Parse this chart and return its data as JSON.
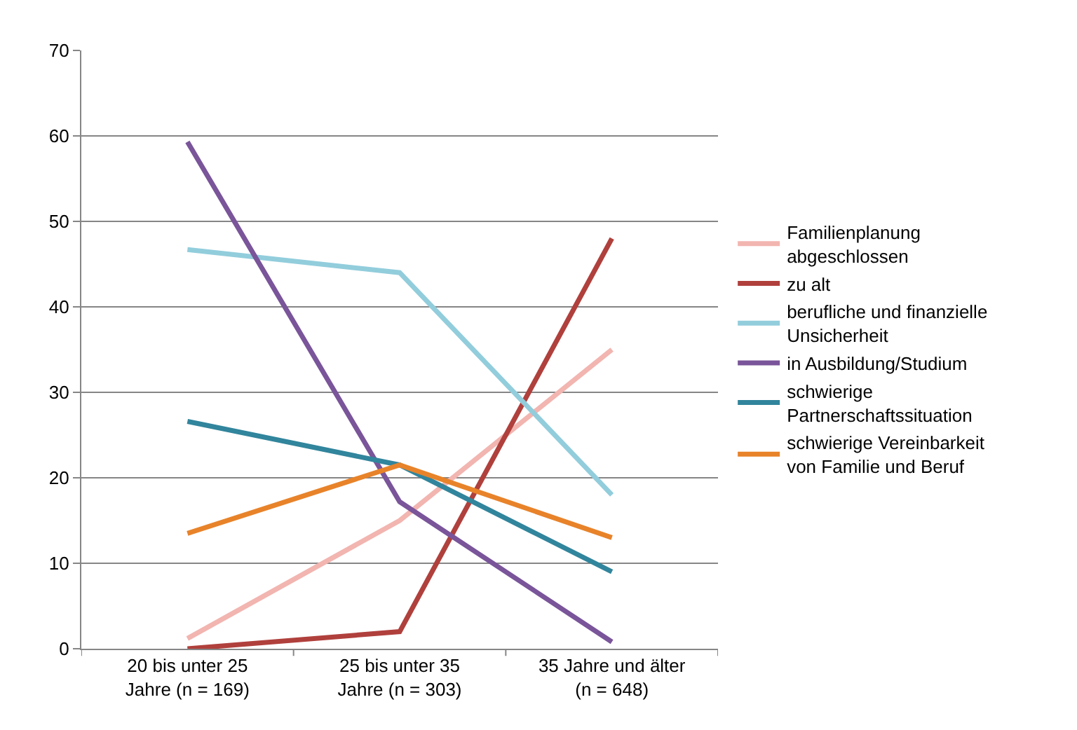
{
  "chart_data": {
    "type": "line",
    "categories": [
      "20 bis unter 25 Jahre (n = 169)",
      "25 bis unter 35 Jahre (n = 303)",
      "35 Jahre und älter (n = 648)"
    ],
    "series": [
      {
        "name": "Familienplanung abgeschlossen",
        "color": "#f2b5b0",
        "values": [
          1.2,
          15,
          35
        ]
      },
      {
        "name": "zu alt",
        "color": "#b0403c",
        "values": [
          0,
          2,
          48
        ]
      },
      {
        "name": "berufliche und finanzielle Unsicherheit",
        "color": "#92cddc",
        "values": [
          46.7,
          44,
          18
        ]
      },
      {
        "name": "in Ausbildung/Studium",
        "color": "#7a559a",
        "values": [
          59.3,
          17.2,
          0.8
        ]
      },
      {
        "name": "schwierige Partnerschaftssituation",
        "color": "#31859c",
        "values": [
          26.6,
          21.5,
          9
        ]
      },
      {
        "name": "schwierige Vereinbarkeit von Familie und Beruf",
        "color": "#e8832a",
        "values": [
          13.5,
          21.5,
          13
        ]
      }
    ],
    "ylim": [
      0,
      70
    ],
    "yticks": [
      0,
      10,
      20,
      30,
      40,
      50,
      60,
      70
    ],
    "grid": "y",
    "legend": "right",
    "marker": "none",
    "line_style": "solid"
  }
}
